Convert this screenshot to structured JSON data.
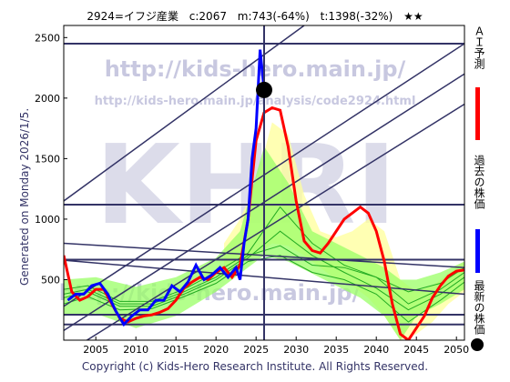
{
  "header": {
    "code_name": "2924=イフジ産業",
    "current": "c:2067",
    "mid": "m:743(-64%)",
    "target": "t:1398(-32%)",
    "stars": "★★"
  },
  "generated": "Generated on Monday 2026/1/5.",
  "copyright": "Copyright (c) Kids-Hero Research Institute. All Rights Reserved.",
  "watermark": {
    "big": "KHRI",
    "url1": "http://kids-hero.main.jp/",
    "url2": "http://kids-hero.main.jp/analysis/code2924.html",
    "url3": "http://kids-hero.main.jp/"
  },
  "legend": [
    {
      "label": "ＡＩ予測",
      "color": "#ff0000"
    },
    {
      "label": "過去の株価",
      "color": "#0000ff"
    },
    {
      "label": "最新の株価",
      "color": "#000000"
    }
  ],
  "chart_data": {
    "type": "line",
    "xlim": [
      2001,
      2051
    ],
    "ylim": [
      0,
      2600
    ],
    "x_ticks": [
      2005,
      2010,
      2015,
      2020,
      2025,
      2030,
      2035,
      2040,
      2045,
      2050
    ],
    "y_ticks": [
      500,
      1000,
      1500,
      2000,
      2500
    ],
    "horizontal_lines": [
      130,
      210,
      665,
      1120,
      2450
    ],
    "latest": {
      "x": 2026.0,
      "y": 2067
    },
    "series": [
      {
        "name": "過去の株価",
        "color": "#0000ff",
        "x": [
          2001.5,
          2002.5,
          2003.5,
          2004.5,
          2005.5,
          2006.5,
          2007.5,
          2008.5,
          2009.5,
          2010.5,
          2011.5,
          2012.5,
          2013.5,
          2014.5,
          2015.5,
          2016.5,
          2017.5,
          2018.5,
          2019.5,
          2020.5,
          2021.5,
          2022.5,
          2023.0,
          2023.5,
          2024.0,
          2024.5,
          2025.0,
          2025.5,
          2026.0
        ],
        "y": [
          330,
          380,
          380,
          450,
          470,
          380,
          240,
          130,
          200,
          250,
          250,
          330,
          330,
          450,
          400,
          480,
          620,
          500,
          540,
          600,
          520,
          600,
          500,
          800,
          1000,
          1500,
          1750,
          2400,
          2067
        ]
      },
      {
        "name": "ＡＩ予測",
        "color": "#ff0000",
        "x": [
          2001.0,
          2002.0,
          2003.0,
          2004.0,
          2005.0,
          2006.0,
          2007.0,
          2008.0,
          2009.0,
          2010.0,
          2011.0,
          2012.0,
          2013.0,
          2014.0,
          2015.0,
          2016.0,
          2017.0,
          2018.0,
          2019.0,
          2020.0,
          2021.0,
          2022.0,
          2023.0,
          2024.0,
          2025.0,
          2026.0,
          2027.0,
          2028.0,
          2029.0,
          2030.0,
          2031.0,
          2032.0,
          2033.0,
          2034.0,
          2035.0,
          2036.0,
          2037.0,
          2038.0,
          2039.0,
          2040.0,
          2041.0,
          2042.0,
          2043.0,
          2044.0,
          2045.0,
          2046.0,
          2047.0,
          2048.0,
          2049.0,
          2050.0,
          2051.0
        ],
        "y": [
          700,
          400,
          330,
          360,
          420,
          420,
          300,
          180,
          150,
          180,
          200,
          210,
          230,
          260,
          330,
          430,
          480,
          520,
          500,
          560,
          600,
          520,
          620,
          1000,
          1650,
          1880,
          1920,
          1900,
          1600,
          1150,
          820,
          740,
          720,
          800,
          900,
          1000,
          1050,
          1100,
          1050,
          900,
          650,
          300,
          50,
          0,
          100,
          200,
          350,
          450,
          530,
          570,
          580
        ]
      }
    ],
    "bands": [
      {
        "name": "",
        "color": "#ffff99",
        "x": [
          2021,
          2023,
          2025,
          2027,
          2029,
          2031,
          2033,
          2035,
          2037,
          2039,
          2041,
          2043,
          2045,
          2047,
          2049,
          2051
        ],
        "upper": [
          800,
          1000,
          1300,
          1800,
          1700,
          1200,
          900,
          850,
          900,
          1000,
          900,
          500,
          400,
          450,
          550,
          650
        ],
        "lower": [
          600,
          650,
          700,
          800,
          780,
          700,
          600,
          500,
          450,
          350,
          200,
          0,
          50,
          150,
          300,
          400
        ]
      },
      {
        "name": "",
        "color": "#99ff66",
        "x": [
          2001,
          2005,
          2010,
          2015,
          2020,
          2023,
          2026,
          2029,
          2032,
          2035,
          2038,
          2041,
          2043,
          2045,
          2048,
          2051
        ],
        "upper": [
          500,
          520,
          440,
          520,
          680,
          900,
          1600,
          1300,
          900,
          800,
          700,
          600,
          500,
          500,
          560,
          650
        ],
        "lower": [
          200,
          220,
          100,
          200,
          400,
          550,
          700,
          650,
          550,
          450,
          350,
          200,
          0,
          200,
          300,
          420
        ]
      }
    ],
    "ma_lines": [
      {
        "x": [
          2001,
          2004,
          2008,
          2012,
          2016,
          2020,
          2024,
          2028,
          2032,
          2036,
          2040,
          2044,
          2048,
          2051
        ],
        "y": [
          380,
          420,
          300,
          300,
          400,
          520,
          700,
          780,
          620,
          600,
          520,
          300,
          420,
          560
        ]
      },
      {
        "x": [
          2001,
          2004,
          2008,
          2012,
          2016,
          2020,
          2024,
          2028,
          2032,
          2036,
          2040,
          2044,
          2048,
          2051
        ],
        "y": [
          350,
          400,
          280,
          280,
          380,
          500,
          680,
          900,
          700,
          560,
          430,
          250,
          380,
          520
        ]
      },
      {
        "x": [
          2001,
          2004,
          2008,
          2012,
          2016,
          2020,
          2024,
          2028,
          2032,
          2036,
          2040,
          2044,
          2048,
          2051
        ],
        "y": [
          420,
          450,
          320,
          320,
          420,
          560,
          720,
          1100,
          800,
          620,
          520,
          400,
          470,
          600
        ]
      },
      {
        "x": [
          2001,
          2004,
          2008,
          2012,
          2016,
          2020,
          2024,
          2028,
          2032,
          2036,
          2040,
          2044,
          2048,
          2051
        ],
        "y": [
          300,
          360,
          250,
          260,
          360,
          470,
          650,
          700,
          560,
          500,
          380,
          150,
          330,
          480
        ]
      }
    ],
    "trend_lines": [
      {
        "x": [
          2001,
          2031
        ],
        "y": [
          1150,
          2600
        ]
      },
      {
        "x": [
          2001,
          2051
        ],
        "y": [
          280,
          2450
        ]
      },
      {
        "x": [
          2001,
          2051
        ],
        "y": [
          80,
          2200
        ]
      },
      {
        "x": [
          2001,
          2051
        ],
        "y": [
          -120,
          1950
        ]
      },
      {
        "x": [
          2001,
          2051
        ],
        "y": [
          800,
          600
        ]
      },
      {
        "x": [
          2001,
          2051
        ],
        "y": [
          660,
          380
        ]
      }
    ]
  }
}
